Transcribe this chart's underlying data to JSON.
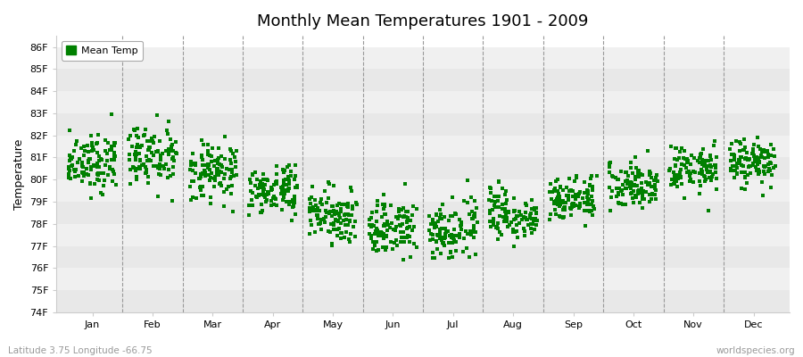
{
  "title": "Monthly Mean Temperatures 1901 - 2009",
  "ylabel": "Temperature",
  "xlabel_labels": [
    "Jan",
    "Feb",
    "Mar",
    "Apr",
    "May",
    "Jun",
    "Jul",
    "Aug",
    "Sep",
    "Oct",
    "Nov",
    "Dec"
  ],
  "bottom_left_text": "Latitude 3.75 Longitude -66.75",
  "bottom_right_text": "worldspecies.org",
  "legend_label": "Mean Temp",
  "dot_color": "#008000",
  "bg_color": "#ffffff",
  "stripe_color_odd": "#f0f0f0",
  "stripe_color_even": "#e8e8e8",
  "ylim_min": 74,
  "ylim_max": 86.5,
  "ytick_labels": [
    "74F",
    "75F",
    "76F",
    "77F",
    "78F",
    "79F",
    "80F",
    "81F",
    "82F",
    "83F",
    "84F",
    "85F",
    "86F"
  ],
  "ytick_values": [
    74,
    75,
    76,
    77,
    78,
    79,
    80,
    81,
    82,
    83,
    84,
    85,
    86
  ],
  "monthly_means": [
    80.8,
    81.0,
    80.3,
    79.5,
    78.4,
    77.8,
    77.7,
    78.4,
    79.2,
    79.8,
    80.5,
    80.8
  ],
  "monthly_stds": [
    0.65,
    0.75,
    0.65,
    0.55,
    0.55,
    0.65,
    0.65,
    0.55,
    0.5,
    0.55,
    0.55,
    0.55
  ],
  "monthly_ranges": [
    4.5,
    5.0,
    3.5,
    2.5,
    2.5,
    3.0,
    3.5,
    2.5,
    2.5,
    2.5,
    2.5,
    3.0
  ],
  "n_years": 109,
  "random_seed": 12,
  "dot_size": 5,
  "dpi": 100,
  "figsize": [
    9.0,
    4.0
  ]
}
